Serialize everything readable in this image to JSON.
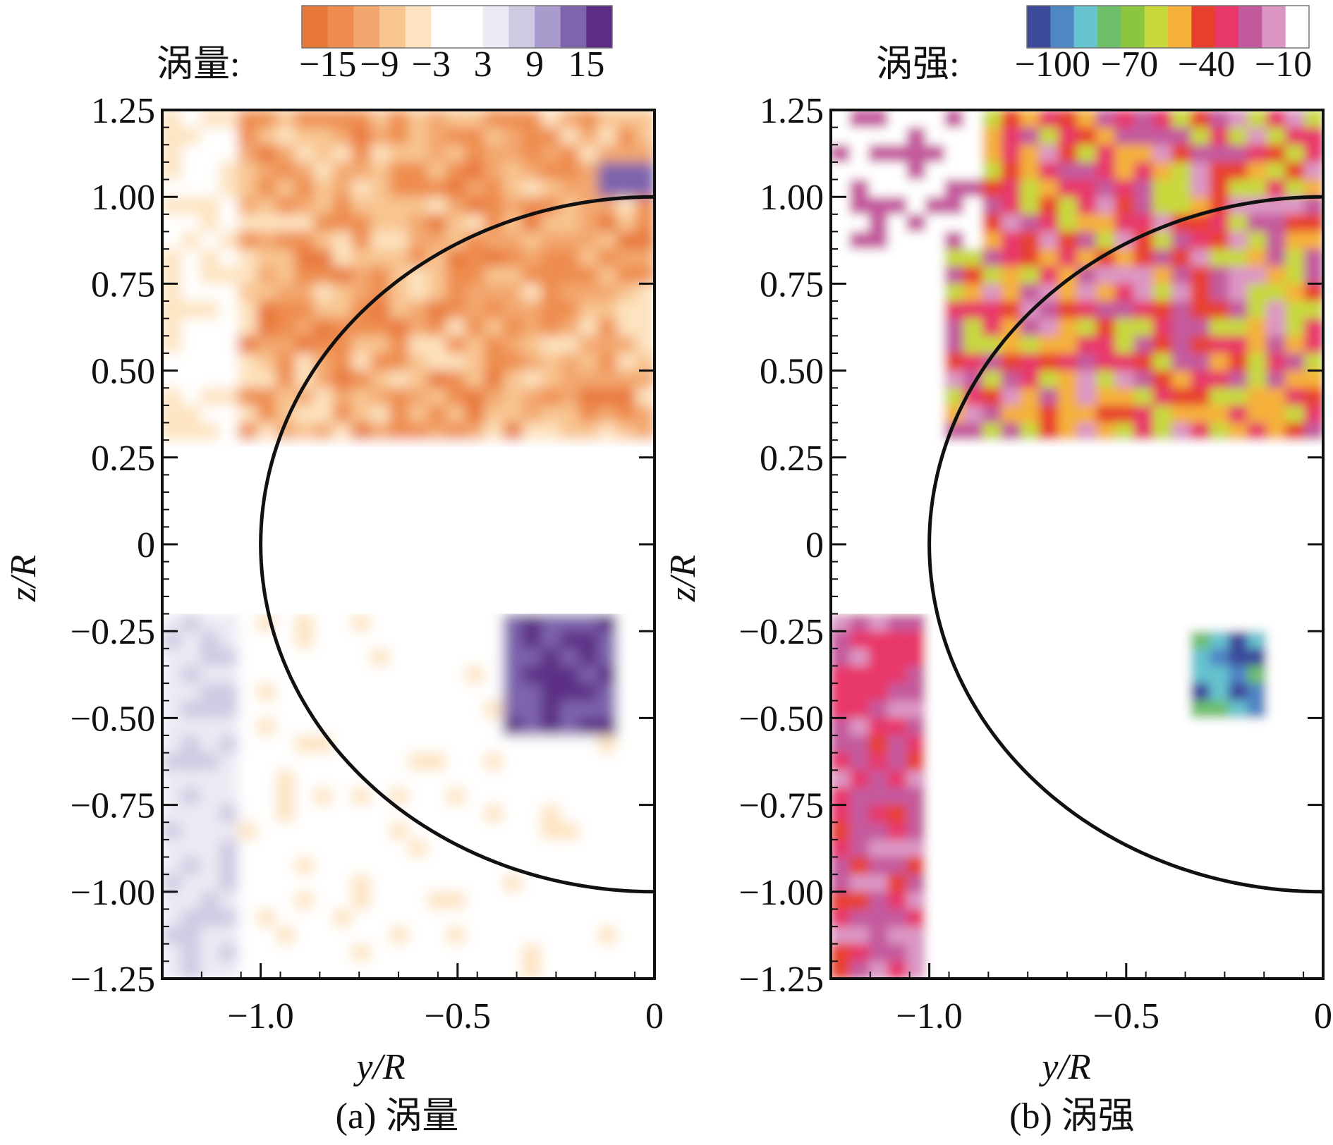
{
  "chart_data": [
    {
      "type": "heatmap",
      "panel": "a",
      "title": "(a) 涡量",
      "xlabel": "y/R",
      "ylabel": "z/R",
      "xlim": [
        -1.25,
        0
      ],
      "ylim": [
        -1.25,
        1.25
      ],
      "x_ticks": [
        -1.0,
        -0.5,
        0
      ],
      "x_tick_labels": [
        "−1.0",
        "−0.5",
        "0"
      ],
      "y_ticks": [
        1.25,
        1.0,
        0.75,
        0.5,
        0.25,
        0,
        -0.25,
        -0.5,
        -0.75,
        -1.0,
        -1.25
      ],
      "y_tick_labels": [
        "1.25",
        "1.00",
        "0.75",
        "0.50",
        "0.25",
        "0",
        "−0.25",
        "−0.50",
        "−0.75",
        "−1.00",
        "−1.25"
      ],
      "colorbar": {
        "label": "涡量:",
        "tick_labels": [
          "−15",
          "−9",
          "−3",
          "3",
          "9",
          "15"
        ],
        "levels": [
          -18,
          -15,
          -12,
          -9,
          -6,
          -3,
          0,
          3,
          6,
          9,
          12,
          15,
          18
        ],
        "colors": [
          "#e8783a",
          "#ee8c4e",
          "#f3a76e",
          "#f8c591",
          "#fde3c0",
          "#ffffff",
          "#ffffff",
          "#ecebf4",
          "#cfc9e2",
          "#a99bcc",
          "#7e63ad",
          "#5c2d85"
        ]
      },
      "blank_band": [
        -0.2,
        0.28
      ],
      "reference_curve": "circle y²+z²=1 (y≤0)"
    },
    {
      "type": "heatmap",
      "panel": "b",
      "title": "(b) 涡强",
      "xlabel": "y/R",
      "ylabel": "z/R",
      "xlim": [
        -1.25,
        0
      ],
      "ylim": [
        -1.25,
        1.25
      ],
      "x_ticks": [
        -1.0,
        -0.5,
        0
      ],
      "x_tick_labels": [
        "−1.0",
        "−0.5",
        "0"
      ],
      "y_ticks": [
        1.25,
        1.0,
        0.75,
        0.5,
        0.25,
        0,
        -0.25,
        -0.5,
        -0.75,
        -1.0,
        -1.25
      ],
      "y_tick_labels": [
        "1.25",
        "1.00",
        "0.75",
        "0.50",
        "0.25",
        "0",
        "−0.25",
        "−0.50",
        "−0.75",
        "−1.00",
        "−1.25"
      ],
      "colorbar": {
        "label": "涡强:",
        "tick_labels": [
          "−100",
          "−70",
          "−40",
          "−10"
        ],
        "levels": [
          -110,
          -100,
          -90,
          -80,
          -70,
          -60,
          -50,
          -40,
          -30,
          -20,
          -10,
          0
        ],
        "colors": [
          "#3c4a9c",
          "#4f86c4",
          "#66c3cf",
          "#6dbf6a",
          "#8cc63f",
          "#c7d93c",
          "#f5b13a",
          "#e8402f",
          "#e8386a",
          "#c45a9e",
          "#dc96c4",
          "#ffffff"
        ]
      },
      "blank_band": [
        -0.2,
        0.28
      ],
      "reference_curve": "circle y²+z²=1 (y≤0)"
    }
  ]
}
